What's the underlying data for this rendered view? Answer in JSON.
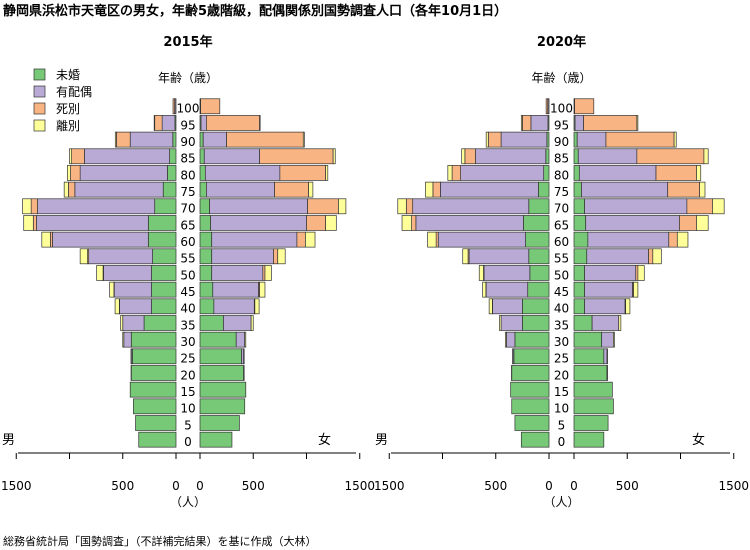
{
  "title": "静岡県浜松市天竜区の男女，年齢5歳階級，配偶関係別国勢調査人口（各年10月1日）",
  "source": "総務省統計局「国勢調査」（不詳補完結果）を基に作成（大林）",
  "colors": {
    "未婚": "#77c877",
    "有配偶": "#b8aad4",
    "死別": "#f9b483",
    "離別": "#ffff99"
  },
  "chart_data": [
    {
      "type": "population-pyramid",
      "title": "2015年",
      "age_label": "年齢（歳）",
      "male_label": "男",
      "female_label": "女",
      "unit_label": "（人）",
      "x_ticks": [
        1500,
        500,
        0,
        500,
        1500
      ],
      "xlim": [
        0,
        1500
      ],
      "categories": [
        "0",
        "5",
        "10",
        "15",
        "20",
        "25",
        "30",
        "35",
        "40",
        "45",
        "50",
        "55",
        "60",
        "65",
        "70",
        "75",
        "80",
        "85",
        "90",
        "95",
        "100"
      ],
      "legend": [
        "未婚",
        "有配偶",
        "死別",
        "離別"
      ],
      "series_male": {
        "未婚": [
          350,
          380,
          400,
          430,
          420,
          410,
          420,
          300,
          230,
          230,
          230,
          220,
          260,
          260,
          200,
          120,
          80,
          60,
          30,
          10,
          3
        ],
        "有配偶": [
          0,
          0,
          0,
          0,
          2,
          10,
          70,
          200,
          300,
          350,
          450,
          600,
          900,
          1050,
          1100,
          830,
          820,
          800,
          400,
          120,
          10
        ],
        "死別": [
          0,
          0,
          0,
          0,
          0,
          0,
          0,
          0,
          2,
          3,
          5,
          10,
          20,
          30,
          60,
          60,
          90,
          120,
          130,
          70,
          15
        ],
        "離別": [
          0,
          0,
          0,
          0,
          0,
          3,
          10,
          20,
          40,
          40,
          60,
          70,
          80,
          90,
          80,
          40,
          30,
          20,
          10,
          5,
          0
        ]
      },
      "series_female": {
        "未婚": [
          300,
          370,
          420,
          430,
          410,
          390,
          340,
          220,
          130,
          120,
          110,
          110,
          110,
          100,
          90,
          60,
          50,
          40,
          30,
          10,
          3
        ],
        "有配偶": [
          0,
          0,
          0,
          0,
          5,
          20,
          80,
          260,
          380,
          430,
          480,
          580,
          800,
          900,
          920,
          640,
          700,
          520,
          220,
          50,
          3
        ],
        "死別": [
          0,
          0,
          0,
          0,
          0,
          0,
          0,
          0,
          5,
          10,
          20,
          40,
          80,
          180,
          290,
          320,
          430,
          690,
          720,
          500,
          180
        ],
        "離別": [
          0,
          0,
          0,
          0,
          0,
          5,
          10,
          20,
          40,
          50,
          60,
          70,
          90,
          100,
          70,
          40,
          20,
          20,
          10,
          5,
          0
        ]
      }
    },
    {
      "type": "population-pyramid",
      "title": "2020年",
      "age_label": "年齢（歳）",
      "male_label": "男",
      "female_label": "女",
      "unit_label": "（人）",
      "x_ticks": [
        1500,
        500,
        0,
        500,
        1500
      ],
      "xlim": [
        0,
        1500
      ],
      "categories": [
        "0",
        "5",
        "10",
        "15",
        "20",
        "25",
        "30",
        "35",
        "40",
        "45",
        "50",
        "55",
        "60",
        "65",
        "70",
        "75",
        "80",
        "85",
        "90",
        "95",
        "100"
      ],
      "legend": [
        "未婚",
        "有配偶",
        "死別",
        "離別"
      ],
      "series_male": {
        "未婚": [
          260,
          320,
          350,
          360,
          350,
          330,
          320,
          250,
          250,
          200,
          180,
          190,
          220,
          240,
          190,
          100,
          50,
          30,
          20,
          10,
          2
        ],
        "有配偶": [
          0,
          0,
          0,
          0,
          2,
          10,
          80,
          200,
          280,
          390,
          430,
          560,
          820,
          1010,
          1090,
          920,
          780,
          660,
          430,
          160,
          10
        ],
        "死別": [
          0,
          0,
          0,
          0,
          0,
          0,
          0,
          0,
          2,
          3,
          5,
          10,
          20,
          40,
          60,
          70,
          80,
          100,
          120,
          80,
          15
        ],
        "離別": [
          0,
          0,
          0,
          0,
          0,
          2,
          10,
          15,
          30,
          30,
          40,
          50,
          80,
          90,
          80,
          70,
          40,
          30,
          20,
          10,
          0
        ]
      },
      "series_female": {
        "未婚": [
          280,
          320,
          370,
          360,
          310,
          280,
          260,
          170,
          100,
          100,
          100,
          120,
          130,
          110,
          100,
          70,
          50,
          40,
          30,
          10,
          3
        ],
        "有配偶": [
          0,
          0,
          0,
          0,
          5,
          30,
          110,
          250,
          380,
          450,
          480,
          580,
          760,
          880,
          960,
          810,
          720,
          550,
          270,
          80,
          3
        ],
        "死別": [
          0,
          0,
          0,
          0,
          0,
          0,
          0,
          0,
          5,
          10,
          20,
          40,
          80,
          160,
          240,
          300,
          380,
          630,
          640,
          500,
          180
        ],
        "離別": [
          0,
          0,
          0,
          0,
          0,
          5,
          10,
          20,
          40,
          40,
          60,
          80,
          100,
          110,
          110,
          50,
          40,
          40,
          20,
          10,
          0
        ]
      }
    }
  ]
}
